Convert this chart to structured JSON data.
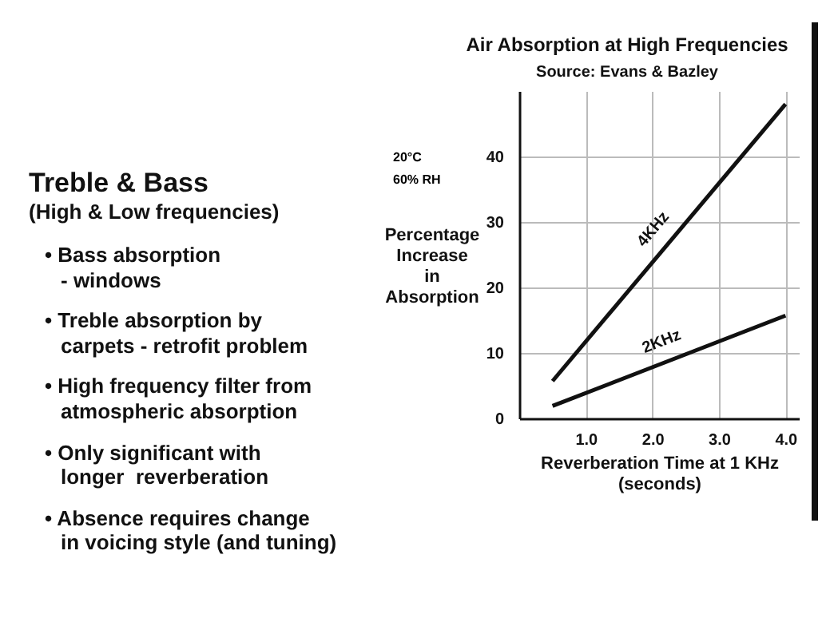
{
  "chart_data": {
    "type": "line",
    "title": "Air Absorption at High Frequencies",
    "subtitle": "Source: Evans & Bazley",
    "xlabel": "Reverberation Time at 1 KHz\n(seconds)",
    "ylabel": "Percentage Increase in Absorption",
    "x": [
      0.5,
      4.0
    ],
    "series": [
      {
        "name": "4KHz",
        "color": "#111111",
        "values": [
          5.7,
          48
        ]
      },
      {
        "name": "2KHz",
        "color": "#111111",
        "values": [
          1.9,
          15.7
        ]
      }
    ],
    "xlim": [
      0,
      4.2
    ],
    "ylim": [
      0,
      50
    ],
    "xticks": [
      {
        "value": 1,
        "label": "1.0"
      },
      {
        "value": 2,
        "label": "2.0"
      },
      {
        "value": 3,
        "label": "3.0"
      },
      {
        "value": 4,
        "label": "4.0"
      }
    ],
    "yticks": [
      0,
      10,
      20,
      30,
      40
    ],
    "grid": true,
    "marker": "none",
    "line_style": "solid",
    "annotations": [
      "20°C",
      "60% RH",
      "Treble & Bass",
      "(High & Low frequencies)",
      "• Bass absorption\n- windows",
      "• Treble absorption by\ncarpets - retrofit problem",
      "• High frequency filter from\natmospheric absorption",
      "• Only significant with\nlonger  reverberation",
      "• Absence requires change\nin voicing style (and tuning)"
    ]
  }
}
